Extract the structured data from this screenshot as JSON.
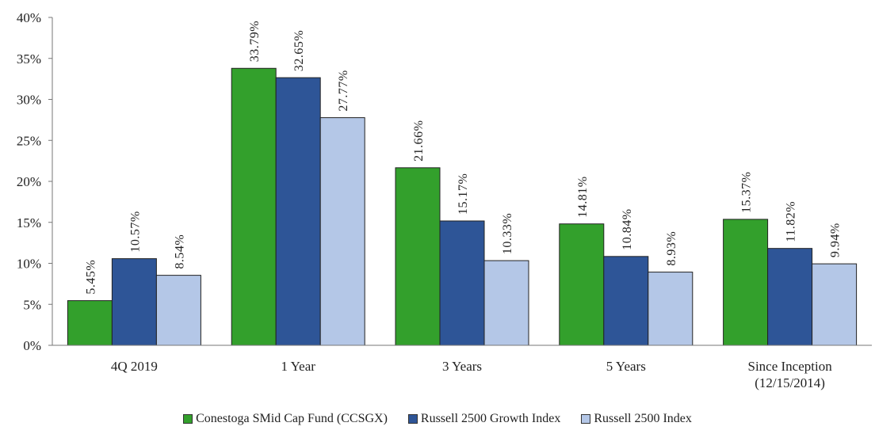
{
  "chart_data": {
    "type": "bar",
    "categories": [
      "4Q 2019",
      "1 Year",
      "3 Years",
      "5 Years",
      "Since Inception\n(12/15/2014)"
    ],
    "series": [
      {
        "name": "Conestoga SMid Cap Fund (CCSGX)",
        "values": [
          5.45,
          33.79,
          21.66,
          14.81,
          15.37
        ],
        "labels": [
          "5.45%",
          "33.79%",
          "21.66%",
          "14.81%",
          "15.37%"
        ],
        "color": "#33a02c"
      },
      {
        "name": "Russell 2500 Growth Index",
        "values": [
          10.57,
          32.65,
          15.17,
          10.84,
          11.82
        ],
        "labels": [
          "10.57%",
          "32.65%",
          "15.17%",
          "10.84%",
          "11.82%"
        ],
        "color": "#2e5597"
      },
      {
        "name": "Russell 2500  Index",
        "values": [
          8.54,
          27.77,
          10.33,
          8.93,
          9.94
        ],
        "labels": [
          "8.54%",
          "27.77%",
          "10.33%",
          "8.93%",
          "9.94%"
        ],
        "color": "#b4c7e7"
      }
    ],
    "yticks": [
      "0%",
      "5%",
      "10%",
      "15%",
      "20%",
      "25%",
      "30%",
      "35%",
      "40%"
    ],
    "ylim": [
      0,
      40
    ],
    "grid": false,
    "legend": "bottom"
  }
}
